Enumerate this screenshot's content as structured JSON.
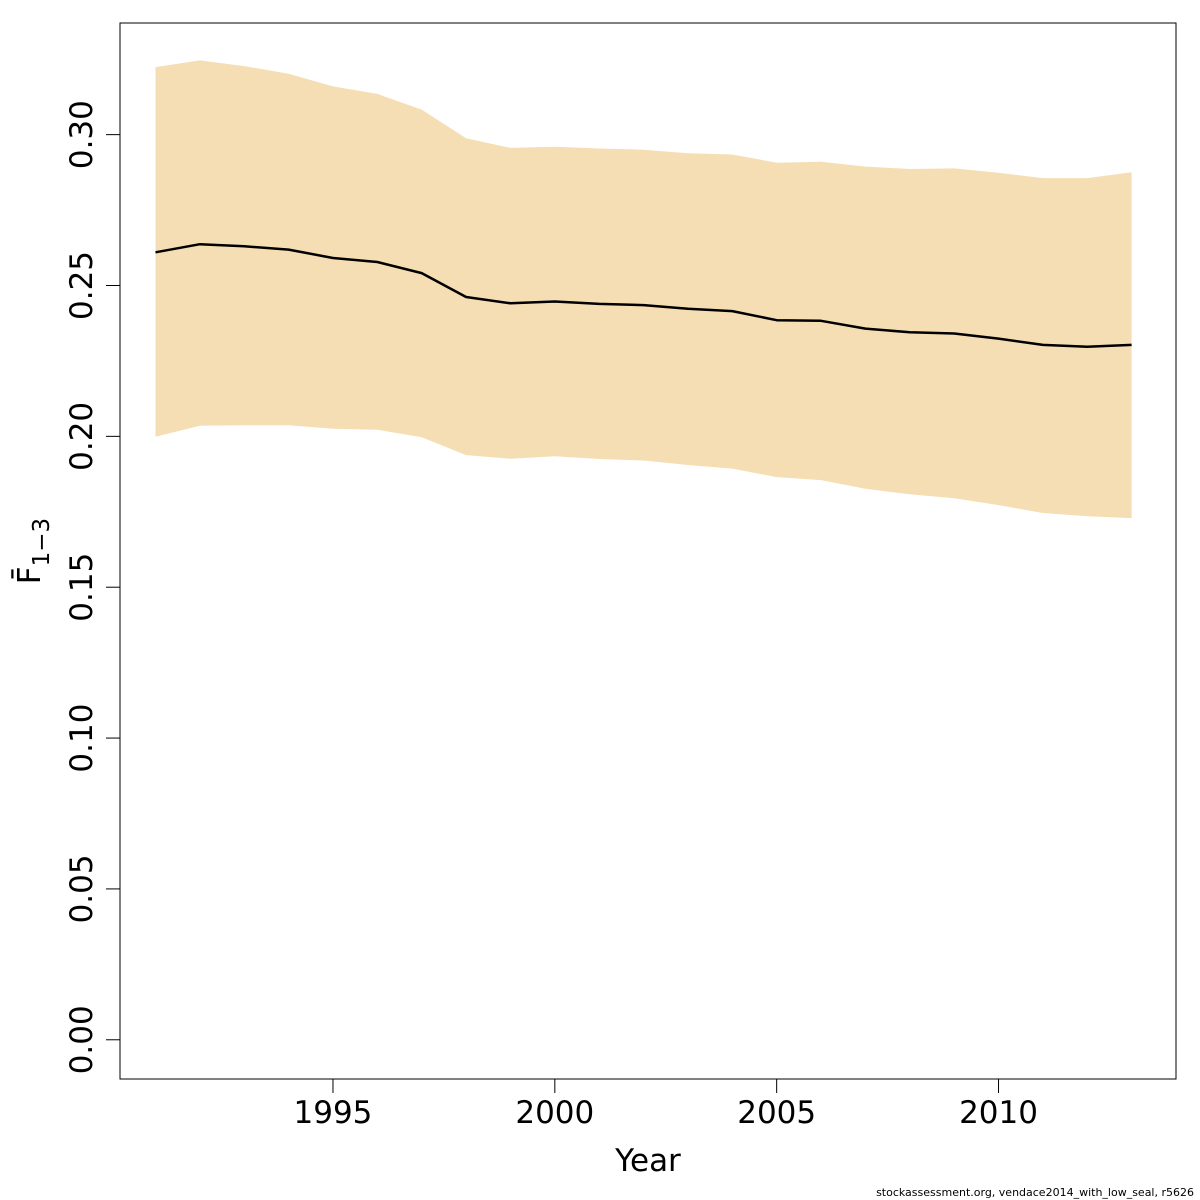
{
  "chart_data": {
    "type": "area",
    "xlabel": "Year",
    "ylabel": "F̄",
    "ylabel_subscript": "1−3",
    "xlim": [
      1990.2,
      2014
    ],
    "ylim": [
      -0.013,
      0.337
    ],
    "grid": false,
    "x_ticks": [
      1995,
      2000,
      2005,
      2010
    ],
    "y_ticks": [
      0.0,
      0.05,
      0.1,
      0.15,
      0.2,
      0.25,
      0.3
    ],
    "y_tick_labels": [
      "0.00",
      "0.05",
      "0.10",
      "0.15",
      "0.20",
      "0.25",
      "0.30"
    ],
    "x": [
      1991,
      1992,
      1993,
      1994,
      1995,
      1996,
      1997,
      1998,
      1999,
      2000,
      2001,
      2002,
      2003,
      2004,
      2005,
      2006,
      2007,
      2008,
      2009,
      2010,
      2011,
      2012,
      2013
    ],
    "series": [
      {
        "values": [
          0.261,
          0.2637,
          0.263,
          0.2619,
          0.2591,
          0.2578,
          0.2541,
          0.2462,
          0.2441,
          0.2447,
          0.2439,
          0.2435,
          0.2423,
          0.2415,
          0.2385,
          0.2383,
          0.2357,
          0.2345,
          0.2341,
          0.2324,
          0.2303,
          0.2297,
          0.2303
        ],
        "color": "#000000"
      }
    ],
    "band": {
      "lower": [
        0.1999,
        0.2035,
        0.2037,
        0.2037,
        0.2025,
        0.2022,
        0.1997,
        0.1938,
        0.1926,
        0.1934,
        0.1925,
        0.192,
        0.1905,
        0.1893,
        0.1865,
        0.1855,
        0.1826,
        0.1808,
        0.1795,
        0.1772,
        0.1746,
        0.1735,
        0.1729
      ],
      "upper": [
        0.3224,
        0.3246,
        0.3227,
        0.3202,
        0.316,
        0.3135,
        0.3083,
        0.2988,
        0.2956,
        0.296,
        0.2954,
        0.295,
        0.2938,
        0.2934,
        0.2907,
        0.291,
        0.2894,
        0.2886,
        0.2888,
        0.2874,
        0.2856,
        0.2856,
        0.2875
      ],
      "color": "#f5deb3"
    }
  },
  "footer": {
    "credit": "stockassessment.org, vendace2014_with_low_seal, r5626"
  }
}
